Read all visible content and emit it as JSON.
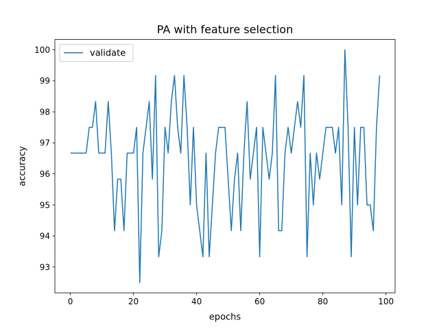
{
  "chart_data": {
    "type": "line",
    "title": "PA with feature selection",
    "xlabel": "epochs",
    "ylabel": "accuracy",
    "xlim": [
      -4.9,
      102.9
    ],
    "ylim": [
      92.17,
      100.33
    ],
    "x_ticks": [
      0,
      20,
      40,
      60,
      80,
      100
    ],
    "y_ticks": [
      93,
      94,
      95,
      96,
      97,
      98,
      99,
      100
    ],
    "grid": false,
    "legend_position": "top-left",
    "series": [
      {
        "name": "validate",
        "color": "#1f77b4",
        "x": [
          0,
          1,
          2,
          3,
          4,
          5,
          6,
          7,
          8,
          9,
          10,
          11,
          12,
          13,
          14,
          15,
          16,
          17,
          18,
          19,
          20,
          21,
          22,
          23,
          24,
          25,
          26,
          27,
          28,
          29,
          30,
          31,
          32,
          33,
          34,
          35,
          36,
          37,
          38,
          39,
          40,
          41,
          42,
          43,
          44,
          45,
          46,
          47,
          48,
          49,
          50,
          51,
          52,
          53,
          54,
          55,
          56,
          57,
          58,
          59,
          60,
          61,
          62,
          63,
          64,
          65,
          66,
          67,
          68,
          69,
          70,
          71,
          72,
          73,
          74,
          75,
          76,
          77,
          78,
          79,
          80,
          81,
          82,
          83,
          84,
          85,
          86,
          87,
          88,
          89,
          90,
          91,
          92,
          93,
          94,
          95,
          96,
          97,
          98
        ],
        "values": [
          96.67,
          96.67,
          96.67,
          96.67,
          96.67,
          96.67,
          97.5,
          97.5,
          98.33,
          96.67,
          96.67,
          96.67,
          98.33,
          96.67,
          94.17,
          95.83,
          95.83,
          94.17,
          96.67,
          96.67,
          96.67,
          97.5,
          92.5,
          96.67,
          97.5,
          98.33,
          95.83,
          99.17,
          93.33,
          94.17,
          97.5,
          96.67,
          98.33,
          99.17,
          97.5,
          96.67,
          99.17,
          97.5,
          95.0,
          97.5,
          95.0,
          94.17,
          93.33,
          96.67,
          93.33,
          95.0,
          96.67,
          97.5,
          97.5,
          97.5,
          95.83,
          94.17,
          95.83,
          96.67,
          94.17,
          96.67,
          98.33,
          95.83,
          96.67,
          97.5,
          93.33,
          97.5,
          96.67,
          95.83,
          96.67,
          99.17,
          94.17,
          94.17,
          96.67,
          97.5,
          96.67,
          97.5,
          98.33,
          97.5,
          99.17,
          93.33,
          96.67,
          95.0,
          96.67,
          95.83,
          96.67,
          97.5,
          97.5,
          97.5,
          96.67,
          97.5,
          95.0,
          100.0,
          97.5,
          93.33,
          97.5,
          95.0,
          97.5,
          97.5,
          95.0,
          95.0,
          94.17,
          97.5,
          99.17
        ]
      }
    ]
  }
}
